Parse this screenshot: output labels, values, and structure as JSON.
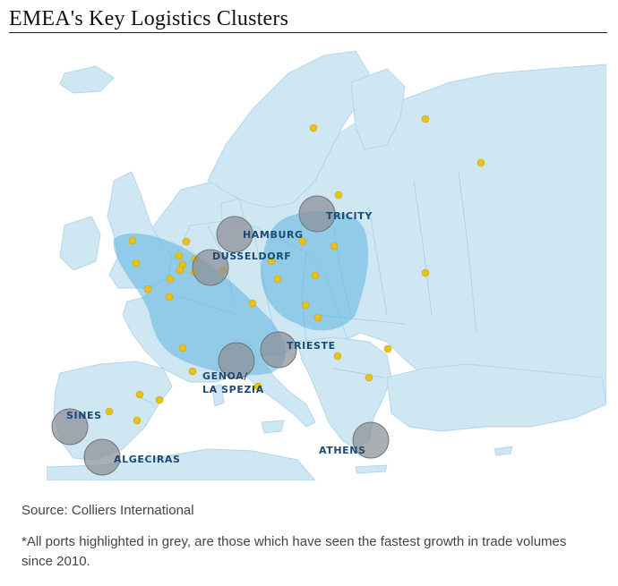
{
  "title": "EMEA's Key Logistics Clusters",
  "colors": {
    "sea": "#ffffff",
    "land": "#cfe6f3",
    "border": "#b3d6ea",
    "cluster": "#5fb5de",
    "port": "#8a8f96",
    "dot": "#e8c21a",
    "label": "#1b4a72"
  },
  "ports": [
    {
      "name": "HAMBURG"
    },
    {
      "name": "TRICITY"
    },
    {
      "name": "DUSSELDORF"
    },
    {
      "name": "TRIESTE"
    },
    {
      "name": "GENOA/",
      "name2": "LA SPEZIA"
    },
    {
      "name": "SINES"
    },
    {
      "name": "ALGECIRAS"
    },
    {
      "name": "ATHENS"
    }
  ],
  "source": "Source:  Colliers International",
  "footnote": "*All ports highlighted in grey, are those which have seen the fastest growth in trade volumes since 2010."
}
